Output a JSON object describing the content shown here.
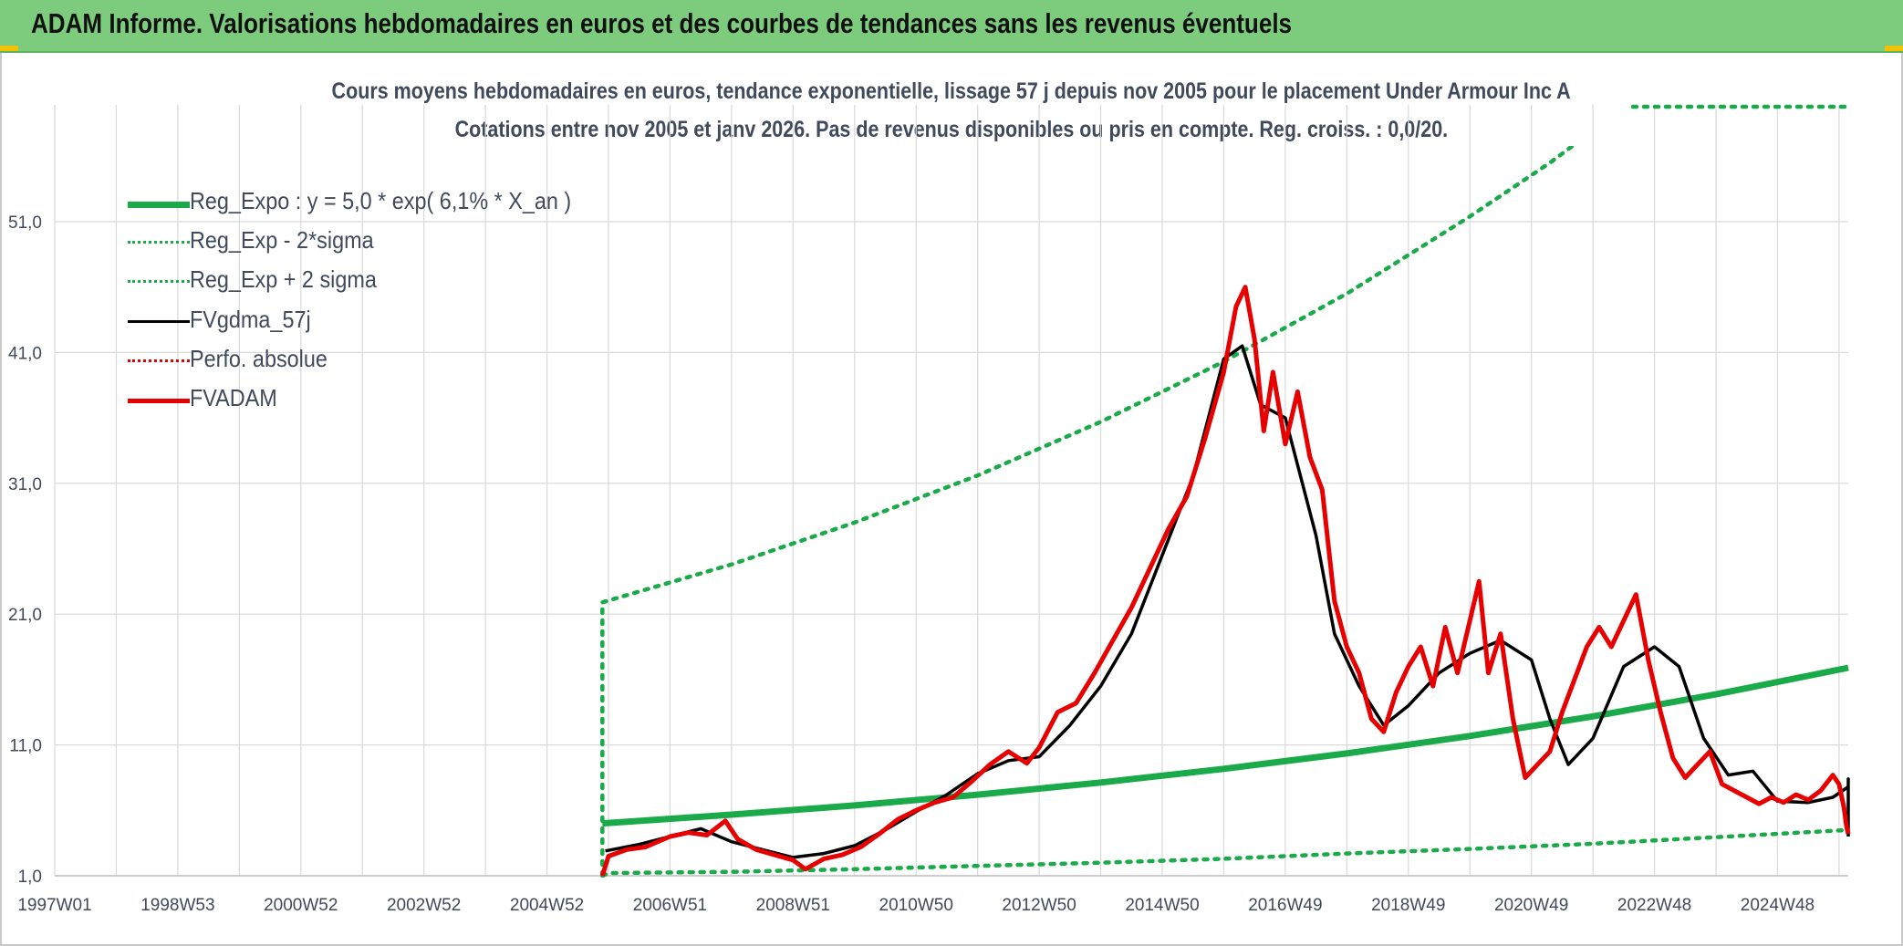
{
  "header": {
    "title": "ADAM Informe. Valorisations hebdomadaires en euros et des courbes de tendances sans les revenus éventuels"
  },
  "colors": {
    "header_bg": "#7dcc7d",
    "reg_expo": "#1aaa4a",
    "reg_band": "#1aaa4a",
    "fvgdma": "#000000",
    "perfo": "#e60000",
    "fvadam": "#e60000",
    "grid": "#d9d9d9"
  },
  "chart_data": {
    "type": "line",
    "title": "Cours moyens hebdomadaires en euros, tendance exponentielle, lissage 57 j depuis nov 2005 pour le placement Under Armour Inc A",
    "subtitle": "Cotations entre nov 2005 et janv 2026. Pas de revenus disponibles ou pris en compte. Reg. croiss. : 0,0/20.",
    "xlabel": "",
    "ylabel": "",
    "x_ticks": [
      "1997W01",
      "1998W53",
      "2000W52",
      "2002W52",
      "2004W52",
      "2006W51",
      "2008W51",
      "2010W50",
      "2012W50",
      "2014W50",
      "2016W49",
      "2018W49",
      "2020W49",
      "2022W48",
      "2024W48"
    ],
    "x_range": [
      1997.0,
      2026.15
    ],
    "y_ticks": [
      "1,0",
      "11,0",
      "21,0",
      "31,0",
      "41,0",
      "51,0"
    ],
    "y_range": [
      1.0,
      59.0
    ],
    "grid": true,
    "legend_position": "top-left",
    "series": [
      {
        "name": "Reg_Expo : y = 5,0 * exp( 6,1% *  X_an )",
        "style": "solid-thick",
        "points": [
          [
            2005.9,
            5.0
          ],
          [
            2008.0,
            5.67
          ],
          [
            2010.0,
            6.38
          ],
          [
            2012.0,
            7.2
          ],
          [
            2014.0,
            8.13
          ],
          [
            2016.0,
            9.17
          ],
          [
            2018.0,
            10.35
          ],
          [
            2020.0,
            11.68
          ],
          [
            2022.0,
            13.18
          ],
          [
            2024.0,
            14.87
          ],
          [
            2026.15,
            16.9
          ]
        ]
      },
      {
        "name": "Reg_Exp - 2*sigma",
        "style": "dotted-green",
        "points": [
          [
            2005.9,
            1.0
          ],
          [
            2006.0,
            1.2
          ],
          [
            2008.0,
            1.3
          ],
          [
            2010.0,
            1.5
          ],
          [
            2012.0,
            1.75
          ],
          [
            2014.0,
            2.0
          ],
          [
            2016.0,
            2.3
          ],
          [
            2018.0,
            2.7
          ],
          [
            2020.0,
            3.05
          ],
          [
            2022.0,
            3.45
          ],
          [
            2024.0,
            3.95
          ],
          [
            2026.15,
            4.5
          ]
        ]
      },
      {
        "name": "Reg_Exp + 2 sigma",
        "style": "dotted-green",
        "points": [
          [
            2005.9,
            1.0
          ],
          [
            2005.9,
            21.9
          ],
          [
            2008.0,
            24.8
          ],
          [
            2010.0,
            28.0
          ],
          [
            2012.0,
            31.6
          ],
          [
            2014.0,
            35.7
          ],
          [
            2016.0,
            40.3
          ],
          [
            2018.0,
            45.5
          ],
          [
            2020.0,
            51.4
          ],
          [
            2021.3,
            55.5
          ],
          [
            2022.1,
            58.3
          ]
        ]
      },
      {
        "name": "FVgdma_57j",
        "style": "solid-black",
        "points": [
          [
            2005.95,
            2.9
          ],
          [
            2006.5,
            3.4
          ],
          [
            2007.0,
            4.0
          ],
          [
            2007.5,
            4.6
          ],
          [
            2008.0,
            3.6
          ],
          [
            2008.5,
            3.0
          ],
          [
            2009.0,
            2.4
          ],
          [
            2009.5,
            2.7
          ],
          [
            2010.0,
            3.3
          ],
          [
            2010.5,
            4.5
          ],
          [
            2011.0,
            5.9
          ],
          [
            2011.5,
            7.2
          ],
          [
            2012.0,
            8.8
          ],
          [
            2012.5,
            9.8
          ],
          [
            2013.0,
            10.1
          ],
          [
            2013.5,
            12.5
          ],
          [
            2014.0,
            15.5
          ],
          [
            2014.5,
            19.5
          ],
          [
            2015.0,
            25.5
          ],
          [
            2015.5,
            31.5
          ],
          [
            2016.0,
            40.5
          ],
          [
            2016.3,
            41.5
          ],
          [
            2016.6,
            37.0
          ],
          [
            2017.0,
            36.0
          ],
          [
            2017.5,
            27.0
          ],
          [
            2017.8,
            19.5
          ],
          [
            2018.2,
            15.5
          ],
          [
            2018.6,
            12.5
          ],
          [
            2019.0,
            14.0
          ],
          [
            2019.5,
            16.5
          ],
          [
            2020.0,
            18.0
          ],
          [
            2020.5,
            19.0
          ],
          [
            2021.0,
            17.5
          ],
          [
            2021.3,
            13.0
          ],
          [
            2021.6,
            9.5
          ],
          [
            2022.0,
            11.5
          ],
          [
            2022.5,
            17.0
          ],
          [
            2023.0,
            18.5
          ],
          [
            2023.4,
            17.0
          ],
          [
            2023.8,
            11.5
          ],
          [
            2024.2,
            8.7
          ],
          [
            2024.6,
            9.0
          ],
          [
            2025.0,
            6.7
          ],
          [
            2025.5,
            6.6
          ],
          [
            2025.9,
            7.0
          ],
          [
            2026.15,
            7.8
          ],
          [
            2026.15,
            8.4
          ],
          [
            2026.15,
            7.5
          ],
          [
            2026.15,
            5.5
          ],
          [
            2026.15,
            4.0
          ]
        ]
      },
      {
        "name": "Perfo. absolue",
        "style": "dotted-red",
        "points": []
      },
      {
        "name": "FVADAM",
        "style": "solid-red",
        "points": [
          [
            2005.9,
            1.0
          ],
          [
            2006.0,
            2.5
          ],
          [
            2006.3,
            3.0
          ],
          [
            2006.6,
            3.2
          ],
          [
            2007.0,
            4.0
          ],
          [
            2007.3,
            4.3
          ],
          [
            2007.6,
            4.1
          ],
          [
            2007.9,
            5.2
          ],
          [
            2008.1,
            3.8
          ],
          [
            2008.4,
            3.0
          ],
          [
            2008.7,
            2.6
          ],
          [
            2009.0,
            2.2
          ],
          [
            2009.2,
            1.5
          ],
          [
            2009.5,
            2.3
          ],
          [
            2009.8,
            2.6
          ],
          [
            2010.1,
            3.2
          ],
          [
            2010.4,
            4.2
          ],
          [
            2010.7,
            5.3
          ],
          [
            2011.0,
            6.0
          ],
          [
            2011.3,
            6.6
          ],
          [
            2011.6,
            7.0
          ],
          [
            2011.9,
            8.2
          ],
          [
            2012.2,
            9.5
          ],
          [
            2012.5,
            10.5
          ],
          [
            2012.8,
            9.6
          ],
          [
            2013.0,
            10.8
          ],
          [
            2013.3,
            13.5
          ],
          [
            2013.6,
            14.2
          ],
          [
            2013.9,
            16.5
          ],
          [
            2014.2,
            19.0
          ],
          [
            2014.5,
            21.5
          ],
          [
            2014.8,
            24.5
          ],
          [
            2015.1,
            27.5
          ],
          [
            2015.4,
            30.0
          ],
          [
            2015.7,
            34.5
          ],
          [
            2016.0,
            39.5
          ],
          [
            2016.2,
            44.5
          ],
          [
            2016.35,
            46.0
          ],
          [
            2016.5,
            42.0
          ],
          [
            2016.65,
            35.0
          ],
          [
            2016.8,
            39.5
          ],
          [
            2017.0,
            34.0
          ],
          [
            2017.2,
            38.0
          ],
          [
            2017.4,
            33.0
          ],
          [
            2017.6,
            30.5
          ],
          [
            2017.8,
            22.0
          ],
          [
            2018.0,
            18.5
          ],
          [
            2018.2,
            16.5
          ],
          [
            2018.4,
            13.0
          ],
          [
            2018.6,
            12.0
          ],
          [
            2018.8,
            15.0
          ],
          [
            2019.0,
            17.0
          ],
          [
            2019.2,
            18.5
          ],
          [
            2019.4,
            15.5
          ],
          [
            2019.6,
            20.0
          ],
          [
            2019.8,
            16.5
          ],
          [
            2020.0,
            20.5
          ],
          [
            2020.15,
            23.5
          ],
          [
            2020.3,
            16.5
          ],
          [
            2020.5,
            19.5
          ],
          [
            2020.7,
            13.0
          ],
          [
            2020.9,
            8.5
          ],
          [
            2021.1,
            9.5
          ],
          [
            2021.3,
            10.5
          ],
          [
            2021.5,
            13.5
          ],
          [
            2021.7,
            16.0
          ],
          [
            2021.9,
            18.5
          ],
          [
            2022.1,
            20.0
          ],
          [
            2022.3,
            18.5
          ],
          [
            2022.5,
            20.5
          ],
          [
            2022.7,
            22.5
          ],
          [
            2022.9,
            17.5
          ],
          [
            2023.1,
            13.5
          ],
          [
            2023.3,
            10.0
          ],
          [
            2023.5,
            8.5
          ],
          [
            2023.7,
            9.5
          ],
          [
            2023.9,
            10.5
          ],
          [
            2024.1,
            8.0
          ],
          [
            2024.3,
            7.5
          ],
          [
            2024.5,
            7.0
          ],
          [
            2024.7,
            6.5
          ],
          [
            2024.9,
            7.0
          ],
          [
            2025.1,
            6.6
          ],
          [
            2025.3,
            7.2
          ],
          [
            2025.5,
            6.8
          ],
          [
            2025.7,
            7.5
          ],
          [
            2025.9,
            8.7
          ],
          [
            2026.0,
            8.0
          ],
          [
            2026.08,
            6.2
          ],
          [
            2026.12,
            4.8
          ],
          [
            2026.15,
            4.2
          ]
        ]
      }
    ]
  }
}
